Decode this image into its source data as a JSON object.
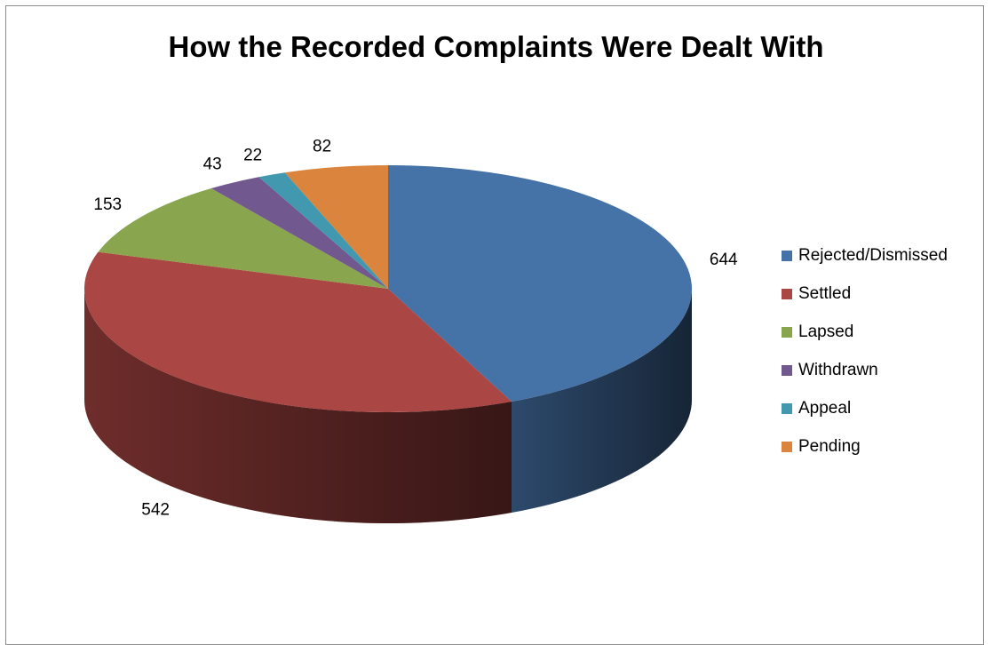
{
  "chart_data": {
    "type": "pie",
    "title": "How the Recorded Complaints Were Dealt With",
    "categories": [
      "Rejected/Dismissed",
      "Settled",
      "Lapsed",
      "Withdrawn",
      "Appeal",
      "Pending"
    ],
    "values": [
      644,
      542,
      153,
      43,
      22,
      82
    ],
    "colors": [
      "#4572A7",
      "#AA4643",
      "#89A54E",
      "#71588F",
      "#4198AF",
      "#DB843D"
    ],
    "legend_placement": "right",
    "three_d": true
  }
}
